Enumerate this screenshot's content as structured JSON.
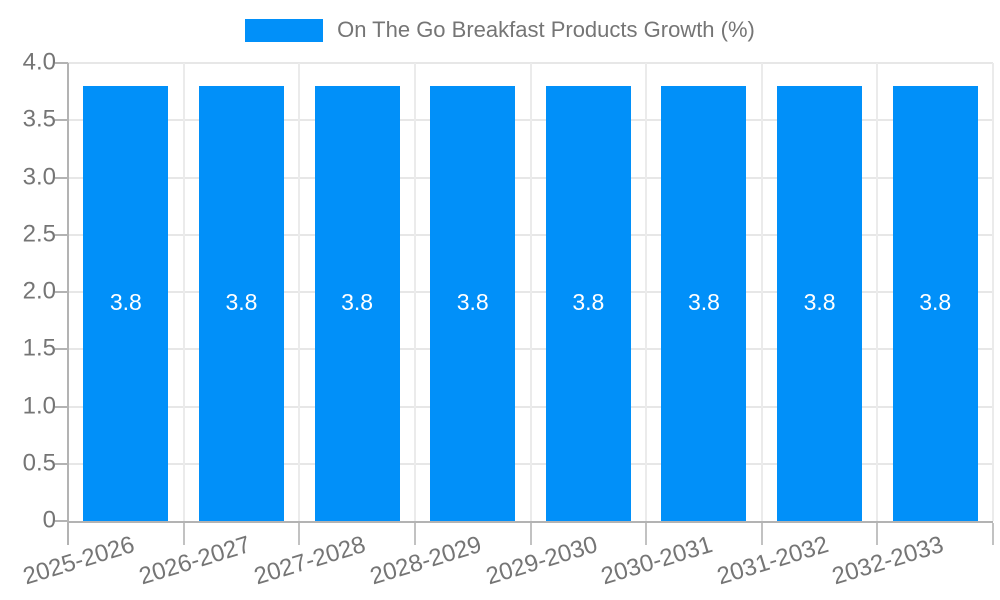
{
  "chart_data": {
    "type": "bar",
    "title": "",
    "legend_position": "top",
    "categories": [
      "2025-2026",
      "2026-2027",
      "2027-2028",
      "2028-2029",
      "2029-2030",
      "2030-2031",
      "2031-2032",
      "2032-2033"
    ],
    "series": [
      {
        "name": "On The Go Breakfast Products Growth (%)",
        "values": [
          3.8,
          3.8,
          3.8,
          3.8,
          3.8,
          3.8,
          3.8,
          3.8
        ]
      }
    ],
    "bar_value_labels": [
      "3.8",
      "3.8",
      "3.8",
      "3.8",
      "3.8",
      "3.8",
      "3.8",
      "3.8"
    ],
    "xlabel": "",
    "ylabel": "",
    "ylim": [
      0,
      4
    ],
    "y_tick_values": [
      0,
      0.5,
      1,
      1.5,
      2,
      2.5,
      3,
      3.5,
      4
    ],
    "y_tick_labels": [
      "0",
      "0.5",
      "1.0",
      "1.5",
      "2.0",
      "2.5",
      "3.0",
      "3.5",
      "4.0"
    ],
    "grid": true,
    "colors": {
      "bar": "#0190f9",
      "axis_text": "#757575",
      "legend_text": "#757575",
      "bar_label_text": "#ffffff",
      "grid_h": "#e7e7e7",
      "grid_v": "#ebebeb",
      "axis_line": "#b3b3b3",
      "tick": "#c2c2c2"
    }
  }
}
